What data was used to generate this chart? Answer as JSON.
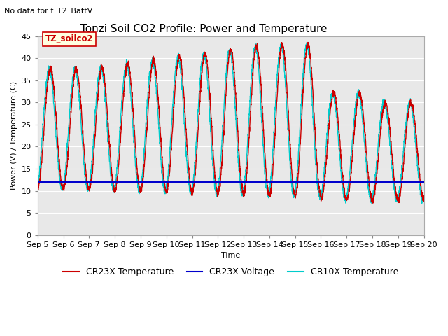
{
  "title": "Tonzi Soil CO2 Profile: Power and Temperature",
  "subtitle": "No data for f_T2_BattV",
  "ylabel": "Power (V) / Temperature (C)",
  "xlabel": "Time",
  "ylim": [
    0,
    45
  ],
  "xlim": [
    0,
    15
  ],
  "xtick_labels": [
    "Sep 5",
    "Sep 6",
    "Sep 7",
    "Sep 8",
    "Sep 9",
    "Sep 10",
    "Sep 11",
    "Sep 12",
    "Sep 13",
    "Sep 14",
    "Sep 15",
    "Sep 16",
    "Sep 17",
    "Sep 18",
    "Sep 19",
    "Sep 20"
  ],
  "legend_label_box": "TZ_soilco2",
  "cr23x_temp_color": "#cc0000",
  "cr23x_volt_color": "#0000cc",
  "cr10x_temp_color": "#00cccc",
  "background_color": "#ffffff",
  "plot_bg_color": "#e8e8e8",
  "title_fontsize": 11,
  "axis_fontsize": 8,
  "legend_fontsize": 9
}
